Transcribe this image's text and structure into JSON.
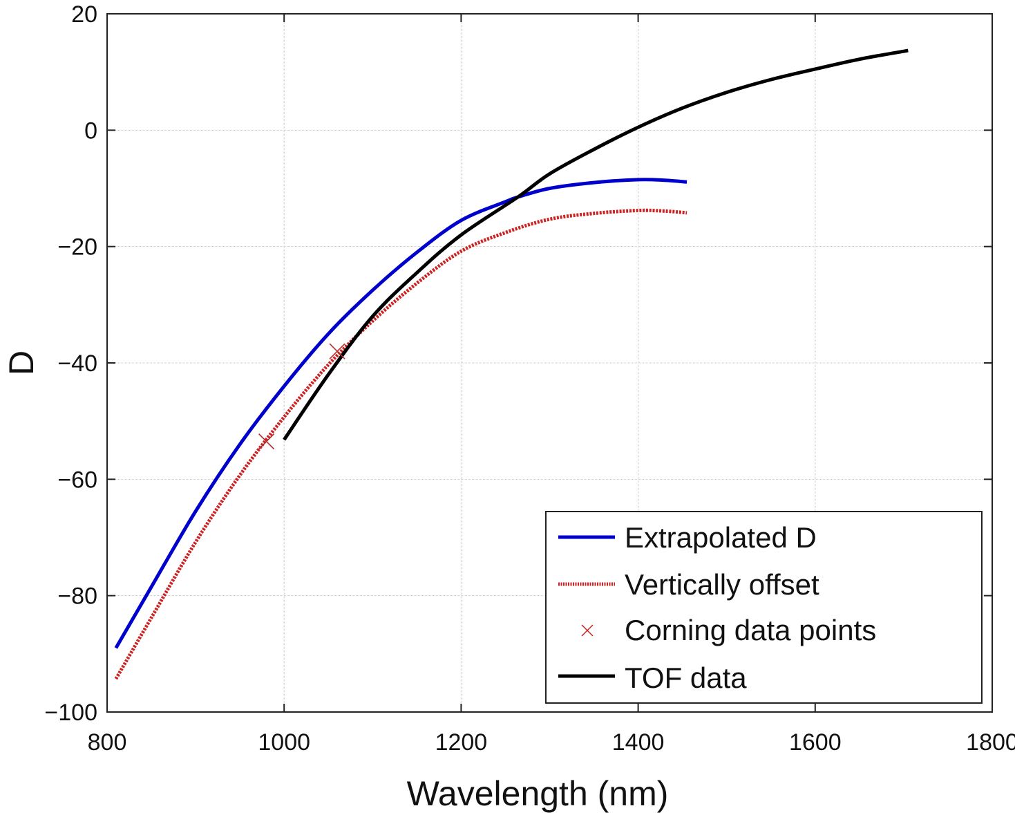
{
  "chart_data": {
    "type": "line",
    "title": "",
    "xlabel": "Wavelength (nm)",
    "ylabel": "D",
    "xlim": [
      800,
      1800
    ],
    "ylim": [
      -100,
      20
    ],
    "xticks": [
      800,
      1000,
      1200,
      1400,
      1600,
      1800
    ],
    "yticks": [
      20,
      0,
      -20,
      -40,
      -60,
      -80,
      -100
    ],
    "xtick_labels": [
      "800",
      "1000",
      "1200",
      "1400",
      "1600",
      "1800"
    ],
    "ytick_labels": [
      "20",
      "0",
      "−20",
      "−40",
      "−60",
      "−80",
      "−100"
    ],
    "grid": true,
    "legend_position": "bottom-right",
    "series": [
      {
        "name": "Extrapolated D",
        "style": "solid",
        "color": "#0000cc",
        "x": [
          810,
          850,
          900,
          950,
          1000,
          1050,
          1100,
          1150,
          1200,
          1250,
          1264,
          1300,
          1350,
          1400,
          1430,
          1455
        ],
        "y": [
          -89.0,
          -78.5,
          -65.5,
          -54.0,
          -44.0,
          -35.0,
          -27.5,
          -21.0,
          -15.5,
          -12.3,
          -11.5,
          -10.0,
          -9.0,
          -8.5,
          -8.6,
          -8.9
        ]
      },
      {
        "name": "Vertically offset",
        "style": "dotted",
        "color": "#cc2222",
        "x": [
          810,
          850,
          900,
          950,
          1000,
          1050,
          1100,
          1150,
          1200,
          1250,
          1300,
          1350,
          1400,
          1430,
          1455
        ],
        "y": [
          -94.3,
          -83.8,
          -70.8,
          -59.3,
          -49.3,
          -40.3,
          -32.8,
          -26.3,
          -20.8,
          -17.6,
          -15.3,
          -14.3,
          -13.8,
          -13.9,
          -14.2
        ]
      },
      {
        "name": "Corning data points",
        "style": "marker-x",
        "color": "#cc2222",
        "x": [
          980,
          1060
        ],
        "y": [
          -53.5,
          -38.0
        ]
      },
      {
        "name": "TOF data",
        "style": "solid",
        "color": "#000000",
        "x": [
          1000,
          1050,
          1100,
          1150,
          1200,
          1264,
          1300,
          1350,
          1400,
          1450,
          1500,
          1550,
          1600,
          1650,
          1705
        ],
        "y": [
          -53.2,
          -42.0,
          -32.0,
          -24.5,
          -18.0,
          -11.5,
          -7.5,
          -3.3,
          0.5,
          3.8,
          6.5,
          8.7,
          10.5,
          12.2,
          13.7
        ]
      }
    ]
  }
}
